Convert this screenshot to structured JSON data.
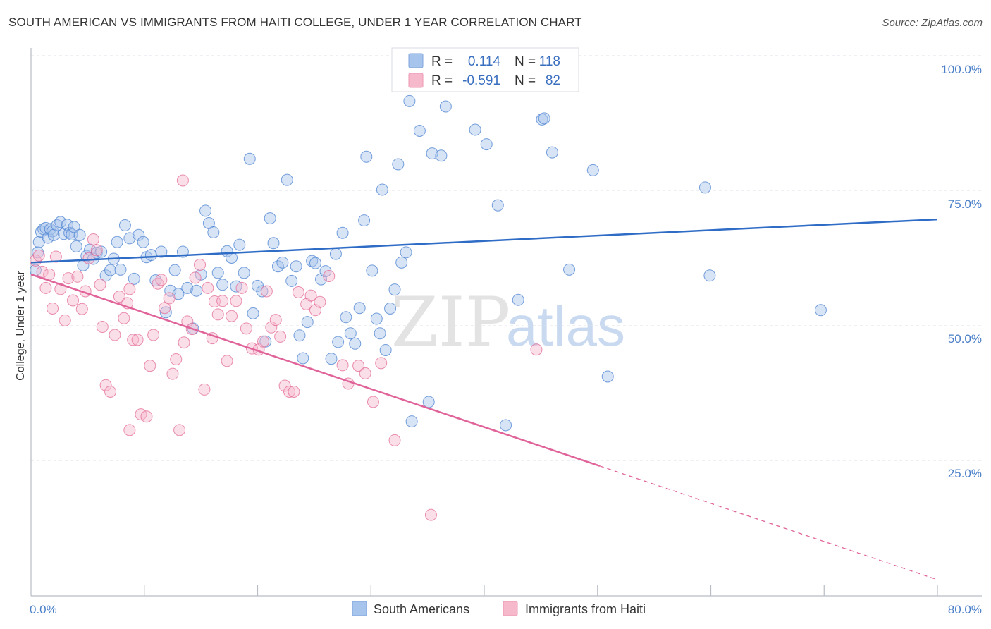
{
  "title": "SOUTH AMERICAN VS IMMIGRANTS FROM HAITI COLLEGE, UNDER 1 YEAR CORRELATION CHART",
  "source": "Source: ZipAtlas.com",
  "watermark": {
    "zip": "ZIP",
    "atlas": "atlas"
  },
  "legend": {
    "r_label": "R =",
    "n_label": "N =",
    "rows": [
      {
        "r": "0.114",
        "n": "118",
        "color": "#a7c4ec"
      },
      {
        "r": "-0.591",
        "n": "82",
        "color": "#f6b8cb"
      }
    ]
  },
  "bottom_legend": [
    {
      "label": "South Americans",
      "color": "#a7c4ec"
    },
    {
      "label": "Immigrants from Haiti",
      "color": "#f6b8cb"
    }
  ],
  "chart_data": {
    "type": "scatter",
    "ylabel": "College, Under 1 year",
    "x_ticks": [
      "0.0%",
      "80.0%"
    ],
    "y_ticks": [
      "100.0%",
      "75.0%",
      "50.0%",
      "25.0%"
    ],
    "xlim": [
      0,
      80
    ],
    "ylim": [
      0,
      100
    ],
    "grid": true,
    "series": [
      {
        "name": "South Americans",
        "color": "#4a80d0",
        "fill": "#a7c4ec",
        "trend": {
          "x": [
            0,
            80
          ],
          "y": [
            61.7,
            69.7
          ]
        },
        "points": [
          [
            0.4,
            60.3
          ],
          [
            0.6,
            63.6
          ],
          [
            0.7,
            65.5
          ],
          [
            0.9,
            67.4
          ],
          [
            1.1,
            67.9
          ],
          [
            1.3,
            68.1
          ],
          [
            1.5,
            66.3
          ],
          [
            1.7,
            67.9
          ],
          [
            1.9,
            67.5
          ],
          [
            2.0,
            66.8
          ],
          [
            2.3,
            68.6
          ],
          [
            2.6,
            69.2
          ],
          [
            2.9,
            67.0
          ],
          [
            3.2,
            68.7
          ],
          [
            3.4,
            67.2
          ],
          [
            3.6,
            66.9
          ],
          [
            3.8,
            68.3
          ],
          [
            4.0,
            64.7
          ],
          [
            4.3,
            66.8
          ],
          [
            4.6,
            61.2
          ],
          [
            4.9,
            62.9
          ],
          [
            5.2,
            64.1
          ],
          [
            5.5,
            62.4
          ],
          [
            5.8,
            63.5
          ],
          [
            6.2,
            63.7
          ],
          [
            6.6,
            59.3
          ],
          [
            7.0,
            60.3
          ],
          [
            7.3,
            62.4
          ],
          [
            7.6,
            65.5
          ],
          [
            7.9,
            60.4
          ],
          [
            8.3,
            68.6
          ],
          [
            8.7,
            66.2
          ],
          [
            9.1,
            58.7
          ],
          [
            9.5,
            66.8
          ],
          [
            9.9,
            65.5
          ],
          [
            10.2,
            62.7
          ],
          [
            10.6,
            63.1
          ],
          [
            11.0,
            58.4
          ],
          [
            11.5,
            63.7
          ],
          [
            11.9,
            52.5
          ],
          [
            12.3,
            56.5
          ],
          [
            12.7,
            60.3
          ],
          [
            13.0,
            55.9
          ],
          [
            13.4,
            63.7
          ],
          [
            13.8,
            57.0
          ],
          [
            14.3,
            49.5
          ],
          [
            14.6,
            56.5
          ],
          [
            15.0,
            59.5
          ],
          [
            15.4,
            71.3
          ],
          [
            15.7,
            69.0
          ],
          [
            16.1,
            67.3
          ],
          [
            16.5,
            59.8
          ],
          [
            16.9,
            57.6
          ],
          [
            17.3,
            63.8
          ],
          [
            17.7,
            62.6
          ],
          [
            18.1,
            57.3
          ],
          [
            18.4,
            65.0
          ],
          [
            18.8,
            59.8
          ],
          [
            19.3,
            80.9
          ],
          [
            19.6,
            52.3
          ],
          [
            20.0,
            57.4
          ],
          [
            20.4,
            56.4
          ],
          [
            20.7,
            47.1
          ],
          [
            21.1,
            69.9
          ],
          [
            21.4,
            65.3
          ],
          [
            21.8,
            61.0
          ],
          [
            22.2,
            61.7
          ],
          [
            22.6,
            77.0
          ],
          [
            23.0,
            58.3
          ],
          [
            23.4,
            61.0
          ],
          [
            23.7,
            48.2
          ],
          [
            24.0,
            44.0
          ],
          [
            24.4,
            50.7
          ],
          [
            24.8,
            62.0
          ],
          [
            25.1,
            61.6
          ],
          [
            25.6,
            58.6
          ],
          [
            26.0,
            60.1
          ],
          [
            26.5,
            43.9
          ],
          [
            26.9,
            63.3
          ],
          [
            27.1,
            47.0
          ],
          [
            27.5,
            67.2
          ],
          [
            27.8,
            51.6
          ],
          [
            28.2,
            48.6
          ],
          [
            28.6,
            46.7
          ],
          [
            29.0,
            53.3
          ],
          [
            29.4,
            69.5
          ],
          [
            29.6,
            81.3
          ],
          [
            30.1,
            60.2
          ],
          [
            30.5,
            51.3
          ],
          [
            30.8,
            48.6
          ],
          [
            31.0,
            75.2
          ],
          [
            31.3,
            45.5
          ],
          [
            31.7,
            53.2
          ],
          [
            32.1,
            56.7
          ],
          [
            32.4,
            79.9
          ],
          [
            32.7,
            61.7
          ],
          [
            33.1,
            63.6
          ],
          [
            33.4,
            91.6
          ],
          [
            33.6,
            32.3
          ],
          [
            34.3,
            86.1
          ],
          [
            35.1,
            35.9
          ],
          [
            35.4,
            81.9
          ],
          [
            36.2,
            81.5
          ],
          [
            36.6,
            90.6
          ],
          [
            39.2,
            86.3
          ],
          [
            40.2,
            83.6
          ],
          [
            41.2,
            72.3
          ],
          [
            41.9,
            31.6
          ],
          [
            41.8,
            100.0
          ],
          [
            43.0,
            54.8
          ],
          [
            45.1,
            88.2
          ],
          [
            45.3,
            88.4
          ],
          [
            46.0,
            82.1
          ],
          [
            47.5,
            60.4
          ],
          [
            49.6,
            78.8
          ],
          [
            50.9,
            40.6
          ],
          [
            59.5,
            75.6
          ],
          [
            59.9,
            59.3
          ],
          [
            69.7,
            52.9
          ]
        ]
      },
      {
        "name": "Immigrants from Haiti",
        "color": "#e36a97",
        "fill": "#f6b8cb",
        "trend": {
          "x": [
            0,
            80
          ],
          "y": [
            59.5,
            3.0
          ],
          "solid_until_x": 50.2
        },
        "points": [
          [
            0.4,
            62.1
          ],
          [
            0.7,
            63.0
          ],
          [
            1.0,
            60.0
          ],
          [
            1.3,
            57.0
          ],
          [
            1.6,
            59.5
          ],
          [
            1.9,
            53.2
          ],
          [
            2.2,
            62.8
          ],
          [
            2.6,
            56.8
          ],
          [
            3.0,
            51.0
          ],
          [
            3.3,
            58.8
          ],
          [
            3.7,
            54.7
          ],
          [
            4.1,
            59.1
          ],
          [
            4.5,
            53.1
          ],
          [
            4.8,
            56.4
          ],
          [
            5.1,
            62.5
          ],
          [
            5.5,
            66.0
          ],
          [
            5.8,
            64.0
          ],
          [
            6.1,
            57.6
          ],
          [
            6.3,
            49.8
          ],
          [
            6.6,
            39.0
          ],
          [
            7.0,
            37.8
          ],
          [
            7.4,
            48.3
          ],
          [
            7.8,
            55.4
          ],
          [
            8.2,
            51.4
          ],
          [
            8.5,
            54.2
          ],
          [
            8.7,
            56.8
          ],
          [
            9.0,
            47.4
          ],
          [
            9.4,
            47.4
          ],
          [
            9.7,
            33.6
          ],
          [
            10.2,
            33.2
          ],
          [
            10.5,
            42.6
          ],
          [
            10.8,
            48.3
          ],
          [
            11.2,
            57.8
          ],
          [
            11.5,
            58.5
          ],
          [
            11.8,
            53.3
          ],
          [
            12.2,
            55.1
          ],
          [
            12.5,
            41.1
          ],
          [
            12.8,
            43.8
          ],
          [
            13.1,
            30.7
          ],
          [
            13.5,
            46.9
          ],
          [
            13.8,
            50.8
          ],
          [
            14.2,
            49.4
          ],
          [
            14.5,
            58.9
          ],
          [
            14.9,
            61.3
          ],
          [
            15.3,
            38.2
          ],
          [
            15.6,
            57.0
          ],
          [
            16.0,
            47.7
          ],
          [
            16.2,
            54.5
          ],
          [
            16.5,
            52.1
          ],
          [
            16.9,
            54.6
          ],
          [
            17.3,
            43.5
          ],
          [
            17.7,
            51.8
          ],
          [
            18.1,
            54.6
          ],
          [
            18.6,
            57.0
          ],
          [
            19.0,
            49.5
          ],
          [
            19.5,
            45.8
          ],
          [
            20.1,
            45.6
          ],
          [
            20.5,
            47.1
          ],
          [
            20.8,
            56.4
          ],
          [
            21.2,
            49.7
          ],
          [
            21.6,
            51.1
          ],
          [
            22.0,
            48.0
          ],
          [
            22.4,
            38.9
          ],
          [
            22.8,
            37.8
          ],
          [
            23.2,
            37.8
          ],
          [
            23.6,
            56.2
          ],
          [
            24.3,
            54.0
          ],
          [
            24.7,
            55.6
          ],
          [
            25.1,
            52.9
          ],
          [
            25.5,
            54.4
          ],
          [
            26.3,
            59.2
          ],
          [
            27.5,
            42.7
          ],
          [
            28.0,
            39.3
          ],
          [
            28.9,
            42.6
          ],
          [
            29.5,
            41.2
          ],
          [
            30.2,
            35.9
          ],
          [
            30.9,
            43.1
          ],
          [
            32.1,
            28.8
          ],
          [
            35.3,
            15.0
          ],
          [
            44.6,
            45.6
          ],
          [
            8.7,
            30.7
          ],
          [
            13.4,
            76.9
          ]
        ]
      }
    ]
  }
}
